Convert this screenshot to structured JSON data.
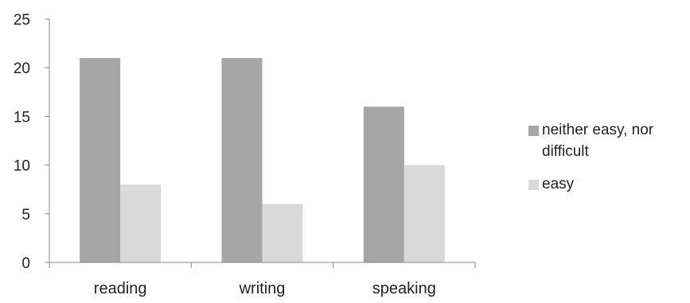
{
  "chart_data": {
    "type": "bar",
    "categories": [
      "reading",
      "writing",
      "speaking"
    ],
    "series": [
      {
        "name": "neither easy, nor difficult",
        "values": [
          21,
          21,
          16
        ],
        "color": "#a6a6a6"
      },
      {
        "name": "easy",
        "values": [
          8,
          6,
          10
        ],
        "color": "#d9d9d9"
      }
    ],
    "yticks": [
      "0",
      "5",
      "10",
      "15",
      "20",
      "25"
    ],
    "ylim": [
      0,
      25
    ],
    "grid": false,
    "legend": "right"
  }
}
